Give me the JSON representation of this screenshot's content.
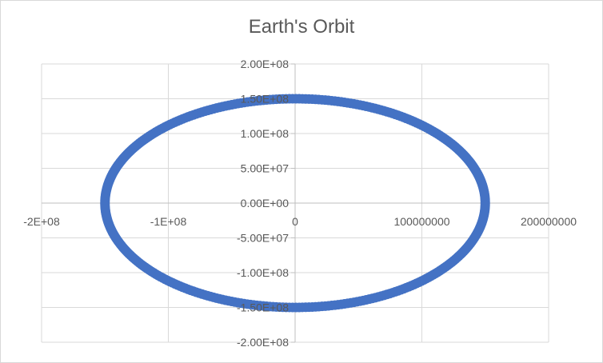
{
  "chart_data": {
    "type": "scatter",
    "title": "Earth's Orbit",
    "xlabel": "",
    "ylabel": "",
    "xlim": [
      -200000000,
      200000000
    ],
    "ylim": [
      -200000000,
      200000000
    ],
    "x_ticks": [
      -200000000,
      -100000000,
      0,
      100000000,
      200000000
    ],
    "x_tick_labels": [
      "-2E+08",
      "-1E+08",
      "0",
      "100000000",
      "200000000"
    ],
    "y_ticks": [
      200000000,
      150000000,
      100000000,
      50000000,
      0,
      -50000000,
      -100000000,
      -150000000,
      -200000000
    ],
    "y_tick_labels": [
      "2.00E+08",
      "1.50E+08",
      "1.00E+08",
      "5.00E+07",
      "0.00E+00",
      "-5.00E+07",
      "-1.00E+08",
      "-1.50E+08",
      "-2.00E+08"
    ],
    "grid": true,
    "legend": "none",
    "series": [
      {
        "color": "#4472c4",
        "shape": "ellipse",
        "semi_major_axis_x": 150000000,
        "semi_minor_axis_y": 150000000,
        "center": [
          0,
          0
        ],
        "point_count": 365
      }
    ]
  }
}
